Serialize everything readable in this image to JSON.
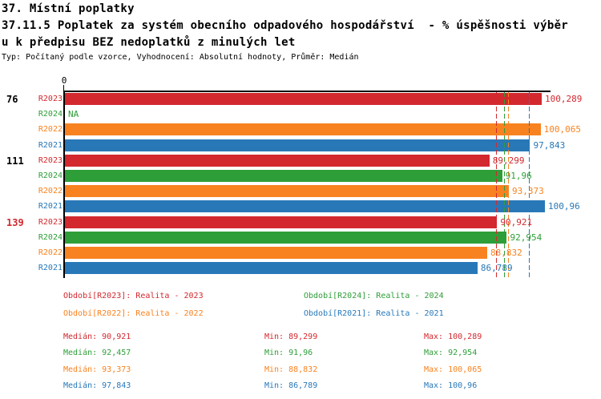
{
  "header": {
    "line1": "37. Místní poplatky",
    "line2": "37.11.5 Poplatek za systém obecního odpadového hospodářství  - % úspěšnosti výběr",
    "line3": "u k předpisu BEZ nedoplatků z minulých let",
    "meta": "Typ: Počítaný podle vzorce, Vyhodnocení: Absolutní hodnoty, Průměr: Medián"
  },
  "colors": {
    "R2023": "#d2282e",
    "R2024": "#2e9e38",
    "R2022": "#f8821f",
    "R2021": "#2878b8",
    "axis": "#000000",
    "group_label_default": "#000000",
    "group_label_highlight": "#d2282e"
  },
  "chart_data": {
    "type": "bar",
    "orientation": "horizontal",
    "xlim": [
      0,
      100.289
    ],
    "axis_zero_label": "0",
    "grid": false,
    "series_order": [
      "R2023",
      "R2024",
      "R2022",
      "R2021"
    ],
    "groups": [
      {
        "label": "76",
        "label_highlight": false,
        "bars": [
          {
            "series": "R2023",
            "value": 100.289,
            "value_label": "100,289"
          },
          {
            "series": "R2024",
            "value": null,
            "value_label": "NA"
          },
          {
            "series": "R2022",
            "value": 100.065,
            "value_label": "100,065"
          },
          {
            "series": "R2021",
            "value": 97.843,
            "value_label": "97,843"
          }
        ]
      },
      {
        "label": "111",
        "label_highlight": false,
        "bars": [
          {
            "series": "R2023",
            "value": 89.299,
            "value_label": "89,299"
          },
          {
            "series": "R2024",
            "value": 91.96,
            "value_label": "91,96"
          },
          {
            "series": "R2022",
            "value": 93.373,
            "value_label": "93,373"
          },
          {
            "series": "R2021",
            "value": 100.96,
            "value_label": "100,96"
          }
        ]
      },
      {
        "label": "139",
        "label_highlight": true,
        "bars": [
          {
            "series": "R2023",
            "value": 90.921,
            "value_label": "90,921"
          },
          {
            "series": "R2024",
            "value": 92.954,
            "value_label": "92,954"
          },
          {
            "series": "R2022",
            "value": 88.832,
            "value_label": "88,832"
          },
          {
            "series": "R2021",
            "value": 86.789,
            "value_label": "86,789"
          }
        ]
      }
    ],
    "reference_lines": [
      {
        "series": "R2023",
        "value": 90.921
      },
      {
        "series": "R2024",
        "value": 92.457
      },
      {
        "series": "R2022",
        "value": 93.373
      },
      {
        "series": "R2021",
        "value": 97.843
      }
    ]
  },
  "legend": {
    "items": [
      {
        "series": "R2023",
        "text": "Období[R2023]: Realita - 2023"
      },
      {
        "series": "R2024",
        "text": "Období[R2024]: Realita - 2024"
      },
      {
        "series": "R2022",
        "text": "Období[R2022]: Realita - 2022"
      },
      {
        "series": "R2021",
        "text": "Období[R2021]: Realita - 2021"
      }
    ]
  },
  "stats": {
    "rows": [
      {
        "series": "R2023",
        "median": "Medián: 90,921",
        "min": "Min: 89,299",
        "max": "Max: 100,289"
      },
      {
        "series": "R2024",
        "median": "Medián: 92,457",
        "min": "Min: 91,96",
        "max": "Max: 92,954"
      },
      {
        "series": "R2022",
        "median": "Medián: 93,373",
        "min": "Min: 88,832",
        "max": "Max: 100,065"
      },
      {
        "series": "R2021",
        "median": "Medián: 97,843",
        "min": "Min: 86,789",
        "max": "Max: 100,96"
      }
    ]
  }
}
